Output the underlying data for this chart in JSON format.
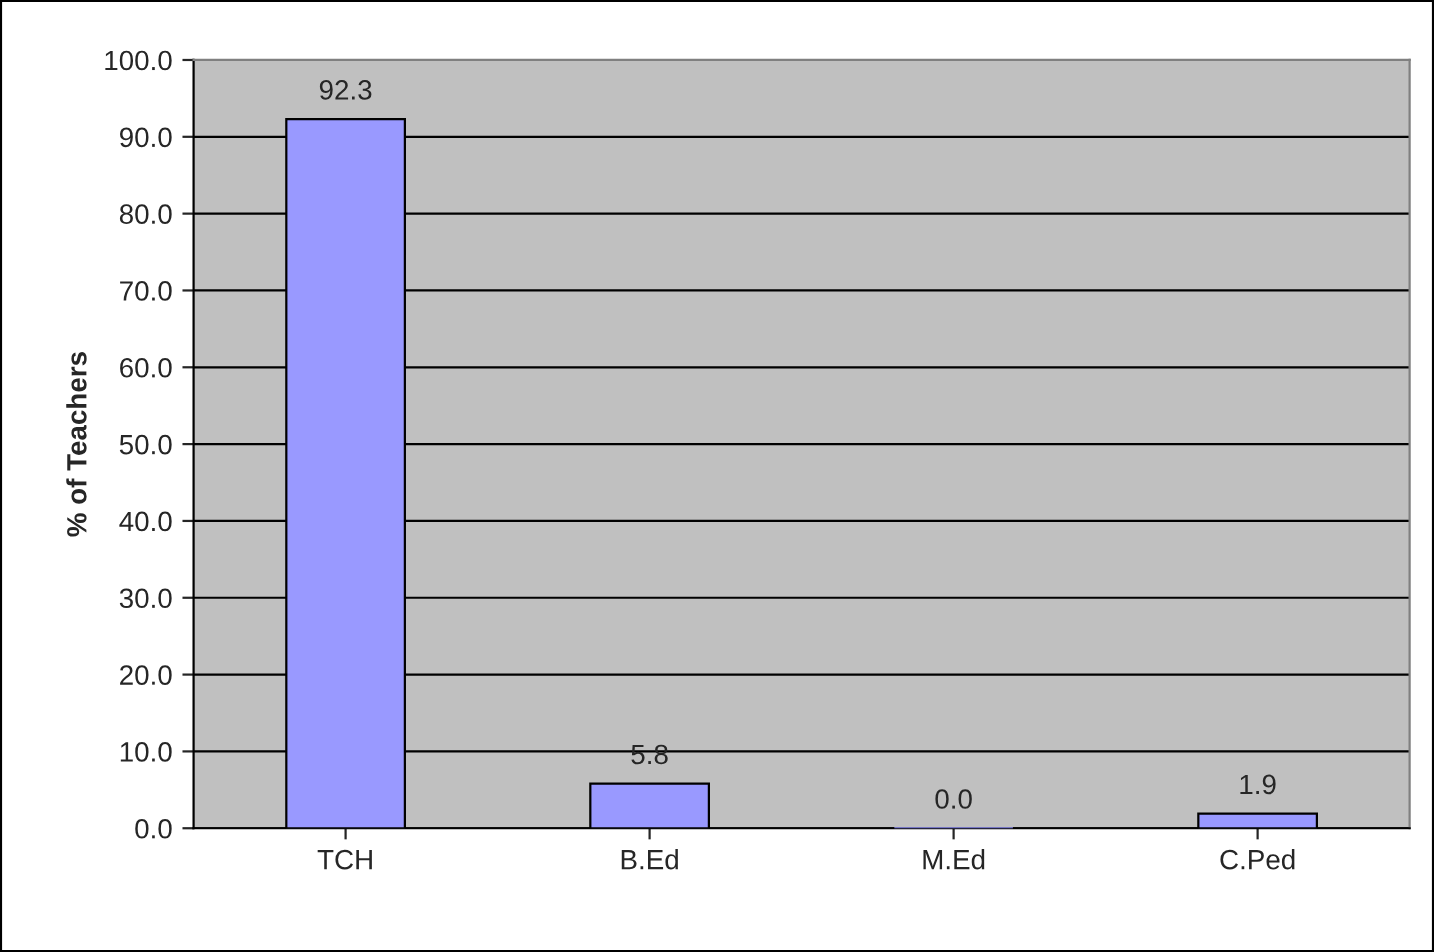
{
  "chart_data": {
    "type": "bar",
    "ylabel": "% of Teachers",
    "categories": [
      "TCH",
      "B.Ed",
      "M.Ed",
      "C.Ped"
    ],
    "values": [
      92.3,
      5.8,
      0.0,
      1.9
    ],
    "value_labels": [
      "92.3",
      "5.8",
      "0.0",
      "1.9"
    ],
    "color": "#9999ff",
    "ylim": [
      0,
      100
    ],
    "yticks": [
      {
        "value": 0,
        "label": "0.0"
      },
      {
        "value": 10,
        "label": "10.0"
      },
      {
        "value": 20,
        "label": "20.0"
      },
      {
        "value": 30,
        "label": "30.0"
      },
      {
        "value": 40,
        "label": "40.0"
      },
      {
        "value": 50,
        "label": "50.0"
      },
      {
        "value": 60,
        "label": "60.0"
      },
      {
        "value": 70,
        "label": "70.0"
      },
      {
        "value": 80,
        "label": "80.0"
      },
      {
        "value": 90,
        "label": "90.0"
      },
      {
        "value": 100,
        "label": "100.0"
      }
    ],
    "grid": "y"
  }
}
